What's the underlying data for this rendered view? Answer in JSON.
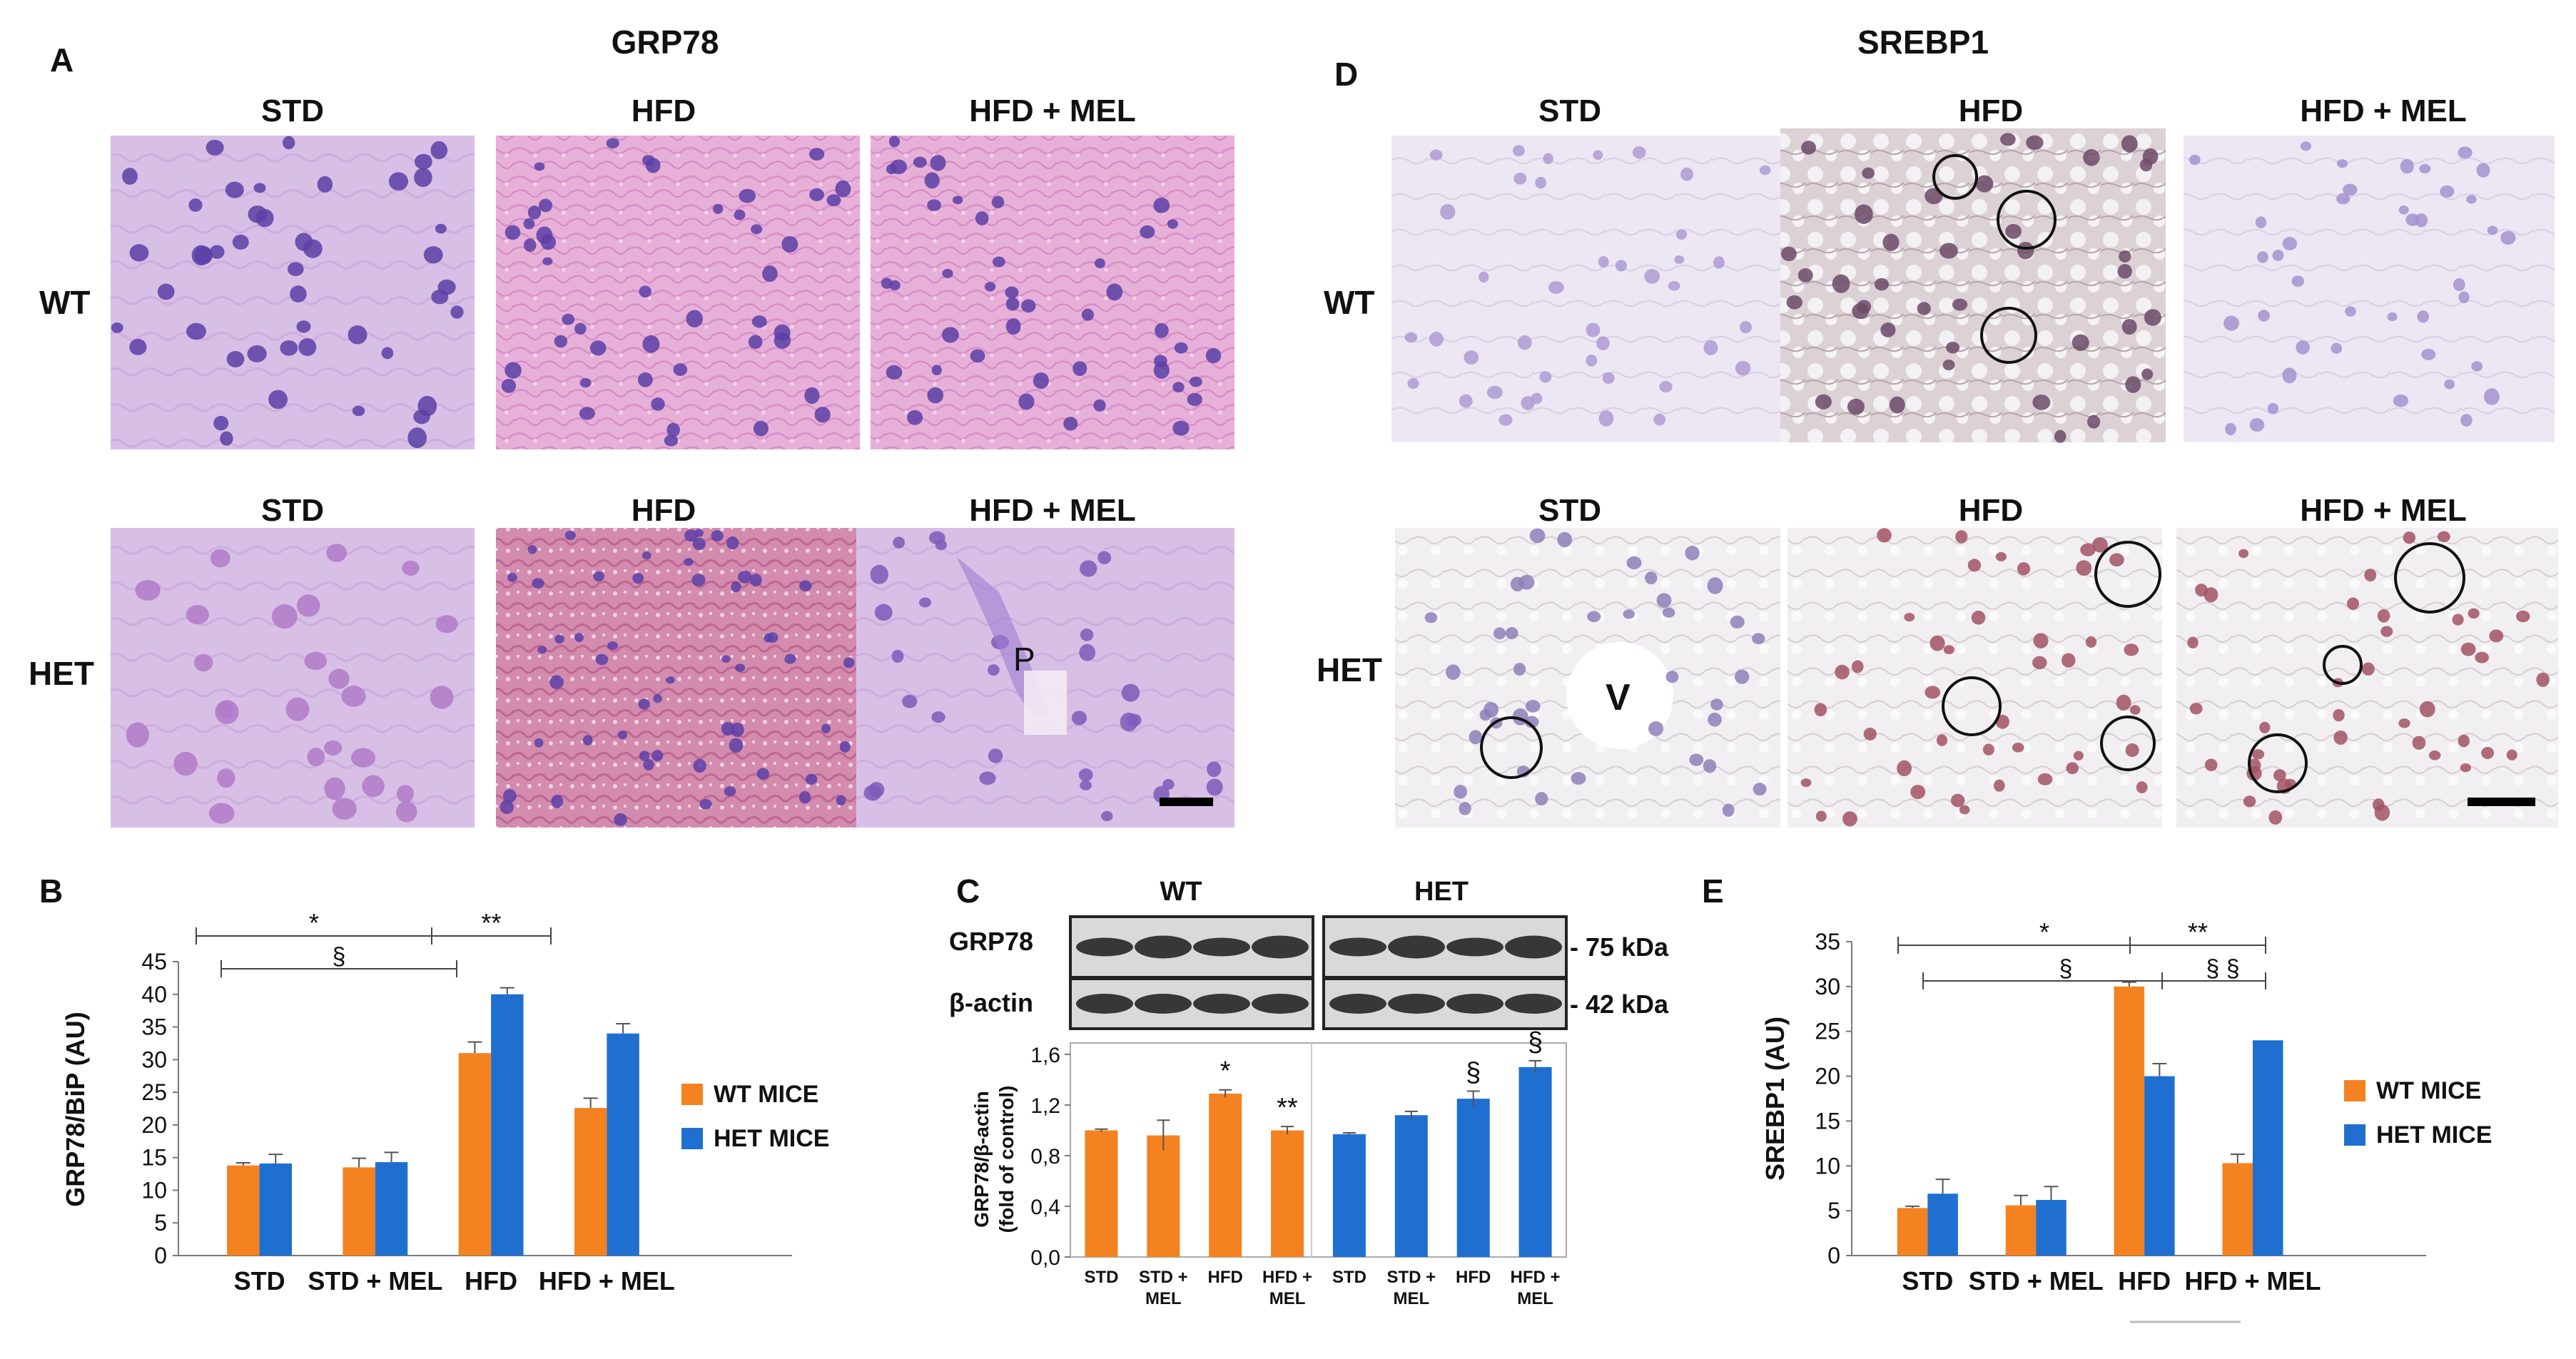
{
  "colors": {
    "wt": "#F58220",
    "het": "#1F6FD1",
    "axis": "#7a7a7a",
    "he_bg": "#E7B0D8",
    "he_dark": "#D070B8",
    "he_rose": "#C86E94",
    "he_pale": "#D9BDE4",
    "ihc_bg": "#E9E4F0",
    "ihc_grey": "#DCD6D9",
    "ihc_white": "#EFEDEF",
    "nucleus": "#5B3FA6",
    "nucleus_brown": "#6C4A68",
    "nucleus_red": "#A25264"
  },
  "panel_A": {
    "label": "A",
    "title": "GRP78",
    "columns": [
      "STD",
      "HFD",
      "HFD + MEL"
    ],
    "columns_row2": [
      "STD",
      "HFD",
      "HFD + MEL"
    ],
    "rows": [
      "WT",
      "HET"
    ],
    "overlay_text": "P"
  },
  "panel_D": {
    "label": "D",
    "title": "SREBP1",
    "columns": [
      "STD",
      "HFD",
      "HFD + MEL"
    ],
    "columns_row2": [
      "STD",
      "HFD",
      "HFD + MEL"
    ],
    "rows": [
      "WT",
      "HET"
    ],
    "overlay_text": "V"
  },
  "panel_C_blot": {
    "label": "C",
    "groups": [
      "WT",
      "HET"
    ],
    "rows": [
      "GRP78",
      "β-actin"
    ],
    "kda": [
      "- 75 kDa",
      "- 42 kDa"
    ]
  },
  "chart_data": [
    {
      "panel": "B",
      "type": "bar",
      "ylabel": "GRP78/BiP (AU)",
      "categories": [
        "STD",
        "STD + MEL",
        "HFD",
        "HFD + MEL"
      ],
      "ylim": [
        0,
        45
      ],
      "yticks": [
        "0",
        "5",
        "10",
        "15",
        "20",
        "25",
        "30",
        "35",
        "40",
        "45"
      ],
      "series": [
        {
          "name": "WT MICE",
          "values": [
            13.8,
            13.5,
            31,
            22.6
          ],
          "errors": [
            0.4,
            1.4,
            1.7,
            1.5
          ]
        },
        {
          "name": "HET MICE",
          "values": [
            14.1,
            14.3,
            40,
            34
          ],
          "errors": [
            1.4,
            1.5,
            1.0,
            1.5
          ]
        }
      ],
      "annotations": [
        {
          "text": "*",
          "from": 0,
          "to": 2
        },
        {
          "text": "**",
          "from": 2,
          "to": 3
        },
        {
          "text": "§",
          "from": 0,
          "to": 2
        }
      ]
    },
    {
      "panel": "C",
      "type": "bar",
      "ylabel": "GRP78/β-actin",
      "ylabel2": "(fold of control)",
      "categories": [
        "STD",
        "STD + MEL",
        "HFD",
        "HFD + MEL",
        "STD",
        "STD + MEL",
        "HFD",
        "HFD + MEL"
      ],
      "ylim": [
        0,
        1.6
      ],
      "yticks": [
        "0,0",
        "0,4",
        "0,8",
        "1,2",
        "1,6"
      ],
      "values": [
        1.0,
        0.96,
        1.29,
        1.0,
        0.97,
        1.12,
        1.25,
        1.5
      ],
      "errors": [
        0.01,
        0.12,
        0.03,
        0.03,
        0.01,
        0.03,
        0.06,
        0.05
      ],
      "groups": [
        "WT",
        "WT",
        "WT",
        "WT",
        "HET",
        "HET",
        "HET",
        "HET"
      ],
      "marks": [
        "",
        "",
        "*",
        "**",
        "",
        "",
        "§",
        "§"
      ]
    },
    {
      "panel": "E",
      "type": "bar",
      "ylabel": "SREBP1 (AU)",
      "categories": [
        "STD",
        "STD + MEL",
        "HFD",
        "HFD + MEL"
      ],
      "ylim": [
        0,
        35
      ],
      "yticks": [
        "0",
        "5",
        "10",
        "15",
        "20",
        "25",
        "30",
        "35"
      ],
      "series": [
        {
          "name": "WT MICE",
          "values": [
            5.3,
            5.6,
            30,
            10.3
          ],
          "errors": [
            0.2,
            1.1,
            0.5,
            1.0
          ]
        },
        {
          "name": "HET MICE",
          "values": [
            6.9,
            6.2,
            20,
            24
          ],
          "errors": [
            1.6,
            1.5,
            1.4,
            0
          ]
        }
      ],
      "annotations": [
        {
          "text": "*",
          "from": 0,
          "to": 2
        },
        {
          "text": "**",
          "from": 2,
          "to": 3
        },
        {
          "text": "§",
          "from": 0,
          "to": 2
        },
        {
          "text": "§ §",
          "from": 2,
          "to": 3
        }
      ]
    }
  ]
}
